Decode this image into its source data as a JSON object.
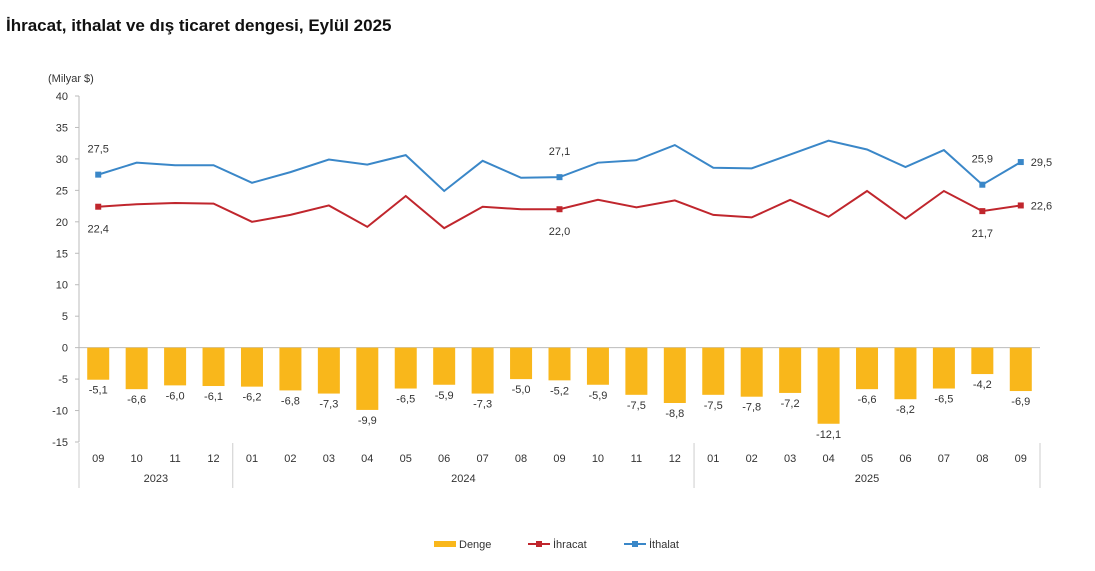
{
  "title": "İhracat, ithalat ve dış ticaret dengesi, Eylül 2025",
  "chart_data": {
    "type": "bar+line",
    "title": "İhracat, ithalat ve dış ticaret dengesi, Eylül 2025",
    "ylabel": "(Milyar $)",
    "ylim": [
      -15,
      40
    ],
    "yticks": [
      40,
      35,
      30,
      25,
      20,
      15,
      10,
      5,
      0,
      -5,
      -10,
      -15
    ],
    "grid": false,
    "legend_position": "bottom",
    "categories": [
      "09",
      "10",
      "11",
      "12",
      "01",
      "02",
      "03",
      "04",
      "05",
      "06",
      "07",
      "08",
      "09",
      "10",
      "11",
      "12",
      "01",
      "02",
      "03",
      "04",
      "05",
      "06",
      "07",
      "08",
      "09"
    ],
    "year_groups": [
      {
        "label": "2023",
        "start": 0,
        "end": 3
      },
      {
        "label": "2024",
        "start": 4,
        "end": 15
      },
      {
        "label": "2025",
        "start": 16,
        "end": 24
      }
    ],
    "series": [
      {
        "name": "Denge",
        "type": "bar",
        "color": "#F9B71B",
        "values": [
          -5.1,
          -6.6,
          -6.0,
          -6.1,
          -6.2,
          -6.8,
          -7.3,
          -9.9,
          -6.5,
          -5.9,
          -7.3,
          -5.0,
          -5.2,
          -5.9,
          -7.5,
          -8.8,
          -7.5,
          -7.8,
          -7.2,
          -12.1,
          -6.6,
          -8.2,
          -6.5,
          -4.2,
          -6.9
        ],
        "labeled": "all"
      },
      {
        "name": "İhracat",
        "type": "line",
        "color": "#C0262D",
        "values": [
          22.4,
          22.8,
          23.0,
          22.9,
          20.0,
          21.1,
          22.6,
          19.2,
          24.1,
          19.0,
          22.4,
          22.0,
          22.0,
          23.5,
          22.3,
          23.4,
          21.1,
          20.7,
          23.5,
          20.8,
          24.9,
          20.5,
          24.9,
          21.7,
          22.6
        ],
        "labeled_indices": [
          0,
          12,
          23,
          24
        ]
      },
      {
        "name": "İthalat",
        "type": "line",
        "color": "#3A87C8",
        "values": [
          27.5,
          29.4,
          29.0,
          29.0,
          26.2,
          27.9,
          29.9,
          29.1,
          30.6,
          24.9,
          29.7,
          27.0,
          27.1,
          29.4,
          29.8,
          32.2,
          28.6,
          28.5,
          30.7,
          32.9,
          31.5,
          28.7,
          31.4,
          25.9,
          29.5
        ],
        "labeled_indices": [
          0,
          12,
          23,
          24
        ]
      }
    ]
  }
}
